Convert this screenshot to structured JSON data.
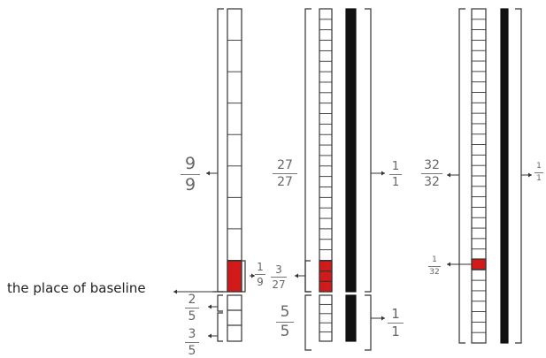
{
  "baseline_label": "the place of baseline",
  "colors": {
    "highlight": "#d11a1a",
    "ink": "#333333",
    "black_bar": "#111111"
  },
  "bar1": {
    "upper_fraction": {
      "num": "9",
      "den": "9"
    },
    "highlight_fraction": {
      "num": "1",
      "den": "9"
    },
    "lower_fraction_a": {
      "num": "2",
      "den": "5"
    },
    "lower_fraction_b": {
      "num": "3",
      "den": "5"
    }
  },
  "bar2": {
    "upper_fraction": {
      "num": "27",
      "den": "27"
    },
    "highlight_fraction": {
      "num": "3",
      "den": "27"
    },
    "black_bar_fraction": {
      "num": "1",
      "den": "1"
    },
    "lower_fraction": {
      "num": "5",
      "den": "5"
    },
    "lower_black_fraction": {
      "num": "1",
      "den": "1"
    }
  },
  "bar3": {
    "upper_fraction": {
      "num": "32",
      "den": "32"
    },
    "highlight_fraction": {
      "num": "1",
      "den": "32"
    },
    "black_bar_fraction": {
      "num": "1",
      "den": "1"
    }
  }
}
